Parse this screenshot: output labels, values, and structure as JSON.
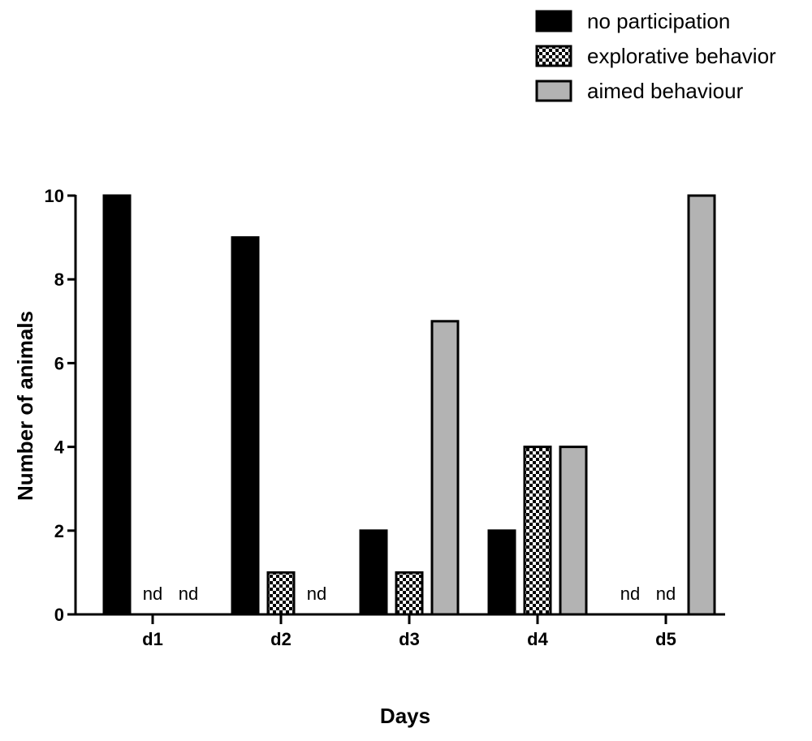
{
  "chart_data": {
    "type": "bar",
    "categories": [
      "d1",
      "d2",
      "d3",
      "d4",
      "d5"
    ],
    "series": [
      {
        "name": "no participation",
        "fill": "black",
        "values": [
          10,
          9,
          2,
          2,
          null
        ]
      },
      {
        "name": "explorative behavior",
        "fill": "checker",
        "values": [
          null,
          1,
          1,
          4,
          null
        ]
      },
      {
        "name": "aimed behaviour",
        "fill": "gray",
        "values": [
          null,
          null,
          7,
          4,
          10
        ]
      }
    ],
    "missing_label": "nd",
    "xlabel": "Days",
    "ylabel": "Number of animals",
    "ylim": [
      0,
      10
    ],
    "yticks": [
      0,
      2,
      4,
      6,
      8,
      10
    ],
    "legend_position": "top-right",
    "grid": false,
    "colors": {
      "black": "#000000",
      "gray": "#b3b3b3",
      "outline": "#000000"
    }
  }
}
